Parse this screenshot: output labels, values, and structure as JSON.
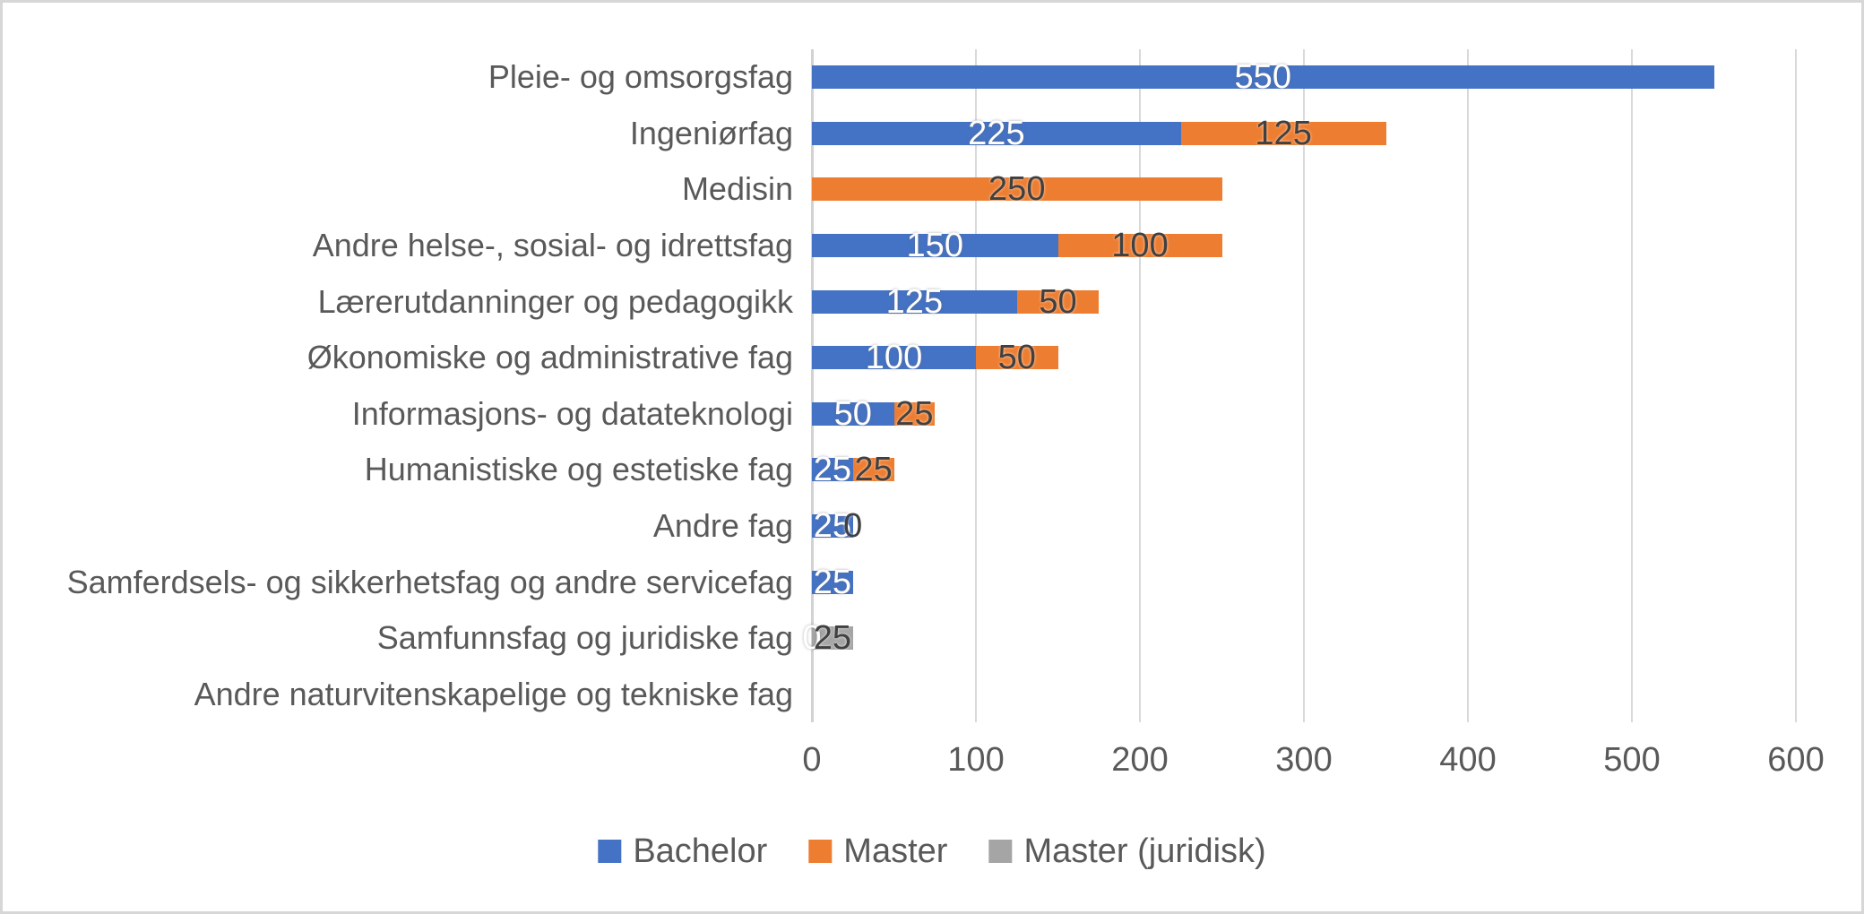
{
  "chart_data": {
    "type": "bar",
    "orientation": "horizontal",
    "stacked": true,
    "title": "",
    "xlabel": "",
    "ylabel": "",
    "xlim": [
      0,
      600
    ],
    "xticks": [
      "0",
      "100",
      "200",
      "300",
      "400",
      "500",
      "600"
    ],
    "grid": true,
    "legend_position": "bottom",
    "categories": [
      "Pleie- og omsorgsfag",
      "Ingeniørfag",
      "Medisin",
      "Andre helse-, sosial- og idrettsfag",
      "Lærerutdanninger og pedagogikk",
      "Økonomiske og administrative fag",
      "Informasjons- og datateknologi",
      "Humanistiske og estetiske fag",
      "Andre fag",
      "Samferdsels- og sikkerhetsfag og andre servicefag",
      "Samfunnsfag og juridiske fag",
      "Andre naturvitenskapelige og tekniske fag"
    ],
    "series": [
      {
        "name": "Bachelor",
        "color": "#4472C4",
        "label_color_class": "light",
        "values": [
          550,
          225,
          0,
          150,
          125,
          100,
          50,
          25,
          25,
          25,
          0,
          0
        ],
        "zero_label_rows": [
          10
        ]
      },
      {
        "name": "Master",
        "color": "#ED7D31",
        "label_color_class": "dark",
        "values": [
          0,
          125,
          250,
          100,
          50,
          50,
          25,
          25,
          0,
          0,
          0,
          0
        ],
        "zero_label_rows": [
          8
        ]
      },
      {
        "name": "Master (juridisk)",
        "color": "#A5A5A5",
        "label_color_class": "dark",
        "values": [
          0,
          0,
          0,
          0,
          0,
          0,
          0,
          0,
          0,
          0,
          25,
          0
        ],
        "zero_label_rows": []
      }
    ],
    "legend": [
      {
        "label": "Bachelor",
        "color": "#4472C4"
      },
      {
        "label": "Master",
        "color": "#ED7D31"
      },
      {
        "label": "Master (juridisk)",
        "color": "#A5A5A5"
      }
    ]
  }
}
